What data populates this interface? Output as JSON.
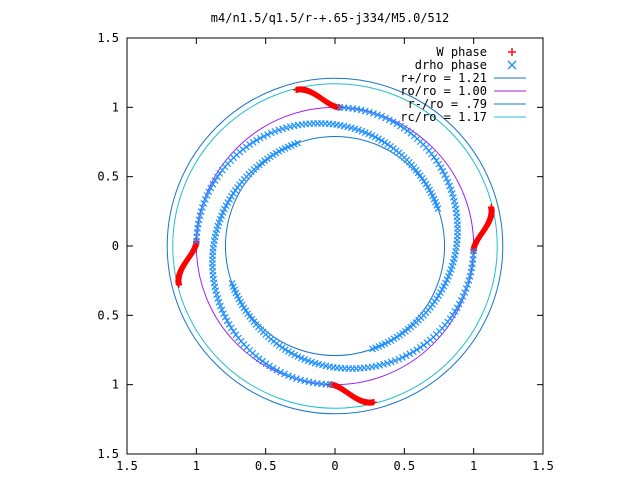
{
  "chart_data": {
    "type": "scatter",
    "title": "m4/n1.5/q1.5/r-+.65-j334/M5.0/512",
    "xlim": [
      -1.5,
      1.5
    ],
    "ylim": [
      -1.5,
      1.5
    ],
    "grid": false,
    "legend_position": "top-right",
    "x_ticks": [
      -1.5,
      -1,
      -0.5,
      0,
      0.5,
      1,
      1.5
    ],
    "y_ticks": [
      -1.5,
      -1,
      -0.5,
      0,
      0.5,
      1,
      1.5
    ],
    "x_tick_labels": [
      "1.5",
      "1",
      "0.5",
      "0",
      "0.5",
      "1",
      "1.5"
    ],
    "y_tick_labels": [
      "1.5",
      "1",
      "0.5",
      "0",
      "0.5",
      "1",
      "1.5"
    ],
    "series": [
      {
        "name": "W phase",
        "marker": "+",
        "color": "#ff0000",
        "arms": 4,
        "r_start": 1.16,
        "r_end": 1.0,
        "theta_start_deg": 104,
        "theta_end_deg": 88
      },
      {
        "name": "drho phase",
        "marker": "x",
        "color": "#1e90ff",
        "arms": 4,
        "r_start": 1.0,
        "r_end": 0.79,
        "theta_start_deg": 88,
        "theta_end_deg": -70
      },
      {
        "name": "r+/ro = 1.21",
        "type": "circle",
        "radius": 1.21,
        "color": "#1874cd"
      },
      {
        "name": "ro/ro = 1.00",
        "type": "circle",
        "radius": 1.0,
        "color": "#a020f0"
      },
      {
        "name": "r-/ro = .79",
        "type": "circle",
        "radius": 0.79,
        "color": "#1874cd"
      },
      {
        "name": "rc/ro = 1.17",
        "type": "circle",
        "radius": 1.17,
        "color": "#20c0d0"
      }
    ]
  }
}
